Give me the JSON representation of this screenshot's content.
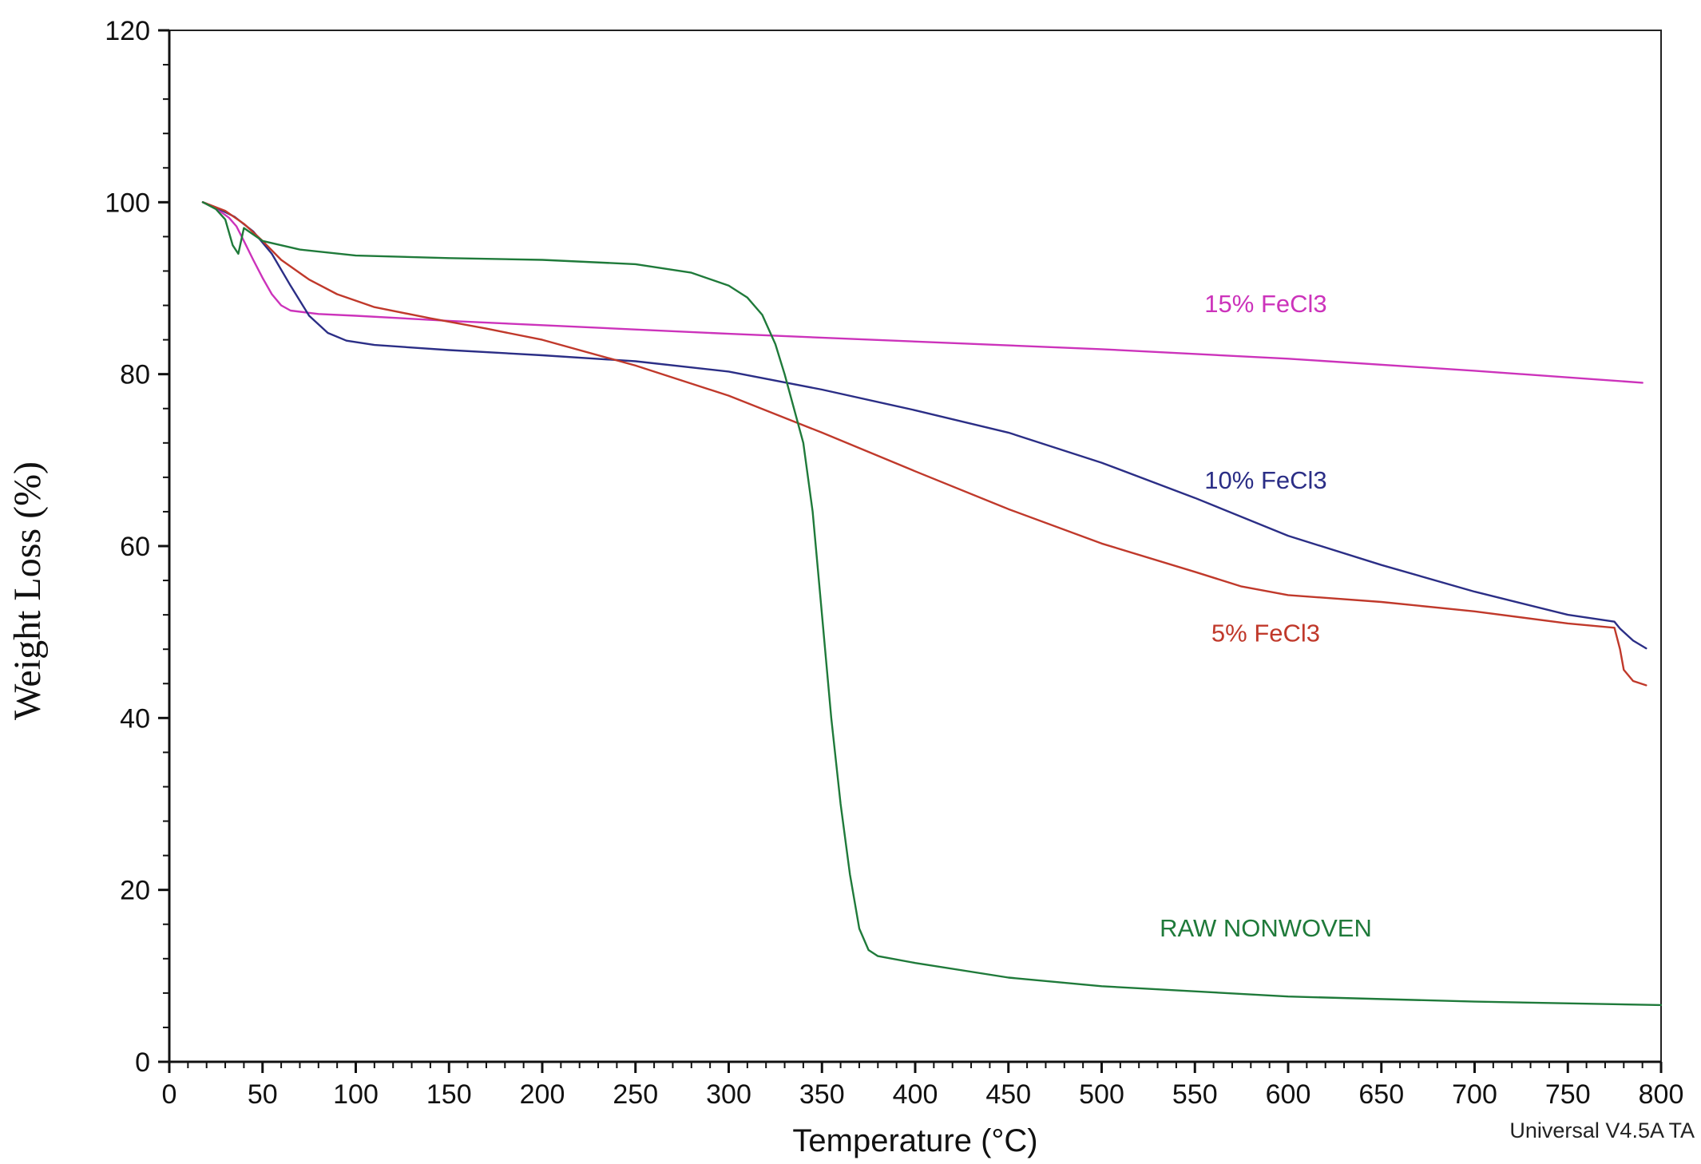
{
  "chart_data": {
    "type": "line",
    "title": "",
    "xlabel": "Temperature (°C)",
    "ylabel": "Weight Loss (%)",
    "xlim": [
      0,
      800
    ],
    "ylim": [
      0,
      120
    ],
    "x_ticks": [
      0,
      50,
      100,
      150,
      200,
      250,
      300,
      350,
      400,
      450,
      500,
      550,
      600,
      650,
      700,
      750,
      800
    ],
    "y_ticks": [
      0,
      20,
      40,
      60,
      80,
      100,
      120
    ],
    "grid": false,
    "legend": "inline labels",
    "footer": "Universal V4.5A TA",
    "series": [
      {
        "name": "15% FeCl3",
        "color": "#cc33bb",
        "label_at": [
          588,
          87.2
        ],
        "points": [
          [
            18,
            100
          ],
          [
            25,
            99.3
          ],
          [
            32,
            98.2
          ],
          [
            36,
            97.2
          ],
          [
            40,
            95.5
          ],
          [
            45,
            93.3
          ],
          [
            50,
            91.2
          ],
          [
            55,
            89.3
          ],
          [
            60,
            88
          ],
          [
            65,
            87.4
          ],
          [
            80,
            87
          ],
          [
            100,
            86.8
          ],
          [
            150,
            86.2
          ],
          [
            200,
            85.7
          ],
          [
            300,
            84.7
          ],
          [
            400,
            83.8
          ],
          [
            500,
            82.9
          ],
          [
            600,
            81.8
          ],
          [
            700,
            80.4
          ],
          [
            790,
            79
          ]
        ]
      },
      {
        "name": "10% FeCl3",
        "color": "#2b2e86",
        "label_at": [
          588,
          66.7
        ],
        "points": [
          [
            18,
            100
          ],
          [
            25,
            99.4
          ],
          [
            35,
            98.3
          ],
          [
            45,
            96.6
          ],
          [
            55,
            94
          ],
          [
            65,
            90.3
          ],
          [
            75,
            86.8
          ],
          [
            85,
            84.8
          ],
          [
            95,
            83.9
          ],
          [
            110,
            83.4
          ],
          [
            150,
            82.8
          ],
          [
            200,
            82.2
          ],
          [
            250,
            81.5
          ],
          [
            300,
            80.3
          ],
          [
            350,
            78.2
          ],
          [
            400,
            75.8
          ],
          [
            450,
            73.2
          ],
          [
            500,
            69.7
          ],
          [
            550,
            65.6
          ],
          [
            600,
            61.2
          ],
          [
            650,
            57.8
          ],
          [
            700,
            54.7
          ],
          [
            750,
            52
          ],
          [
            775,
            51.2
          ],
          [
            778,
            50.4
          ],
          [
            785,
            49
          ],
          [
            792,
            48.1
          ]
        ]
      },
      {
        "name": "5% FeCl3",
        "color": "#c0392b",
        "label_at": [
          588,
          48.9
        ],
        "points": [
          [
            18,
            100
          ],
          [
            30,
            99
          ],
          [
            40,
            97.5
          ],
          [
            50,
            95.5
          ],
          [
            60,
            93.3
          ],
          [
            75,
            91
          ],
          [
            90,
            89.3
          ],
          [
            110,
            87.8
          ],
          [
            140,
            86.5
          ],
          [
            170,
            85.3
          ],
          [
            200,
            84
          ],
          [
            250,
            81
          ],
          [
            300,
            77.5
          ],
          [
            350,
            73.2
          ],
          [
            400,
            68.7
          ],
          [
            450,
            64.3
          ],
          [
            500,
            60.3
          ],
          [
            550,
            57
          ],
          [
            575,
            55.3
          ],
          [
            600,
            54.3
          ],
          [
            650,
            53.5
          ],
          [
            700,
            52.4
          ],
          [
            750,
            51
          ],
          [
            775,
            50.5
          ],
          [
            778,
            48
          ],
          [
            780,
            45.6
          ],
          [
            785,
            44.3
          ],
          [
            792,
            43.8
          ]
        ]
      },
      {
        "name": "RAW NONWOVEN",
        "color": "#1f7a3a",
        "label_at": [
          588,
          14.6
        ],
        "points": [
          [
            18,
            100
          ],
          [
            25,
            99.2
          ],
          [
            30,
            98
          ],
          [
            32,
            96.5
          ],
          [
            34,
            95
          ],
          [
            37,
            94
          ],
          [
            40,
            97
          ],
          [
            50,
            95.5
          ],
          [
            70,
            94.5
          ],
          [
            100,
            93.8
          ],
          [
            150,
            93.5
          ],
          [
            200,
            93.3
          ],
          [
            250,
            92.8
          ],
          [
            280,
            91.8
          ],
          [
            300,
            90.3
          ],
          [
            310,
            88.9
          ],
          [
            318,
            86.9
          ],
          [
            325,
            83.5
          ],
          [
            330,
            80
          ],
          [
            335,
            76
          ],
          [
            340,
            72
          ],
          [
            345,
            64
          ],
          [
            350,
            52
          ],
          [
            355,
            40
          ],
          [
            360,
            30
          ],
          [
            365,
            21.8
          ],
          [
            370,
            15.5
          ],
          [
            375,
            13
          ],
          [
            380,
            12.3
          ],
          [
            400,
            11.5
          ],
          [
            450,
            9.8
          ],
          [
            500,
            8.8
          ],
          [
            600,
            7.6
          ],
          [
            700,
            7
          ],
          [
            800,
            6.6
          ]
        ]
      }
    ]
  }
}
